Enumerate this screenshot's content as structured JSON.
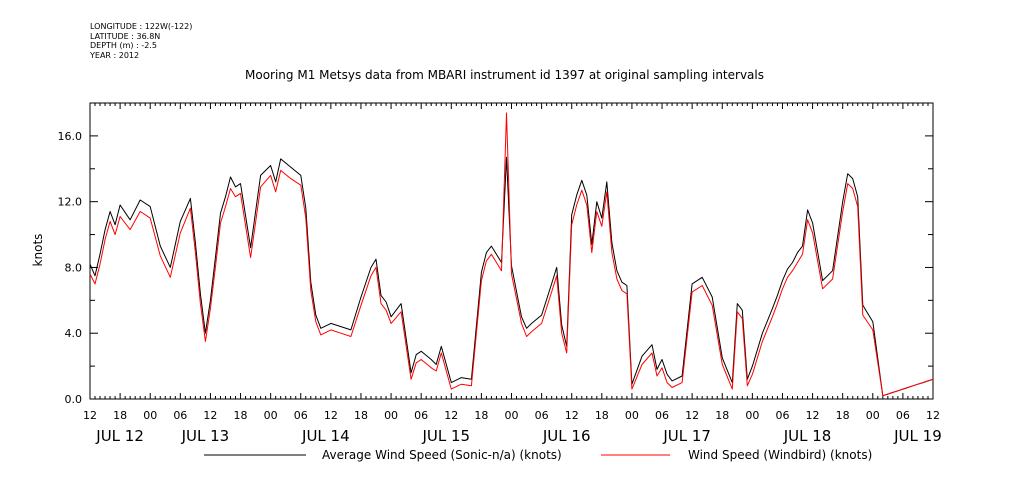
{
  "meta_lines": [
    "LONGITUDE : 122W(-122)",
    "LATITUDE : 36.8N",
    "DEPTH (m) : -2.5",
    "YEAR : 2012"
  ],
  "title": "Mooring M1 Metsys data from MBARI instrument id 1397 at original sampling intervals",
  "chart_data": {
    "type": "line",
    "title": "Mooring M1 Metsys data from MBARI instrument id 1397 at original sampling intervals",
    "xlabel": "",
    "ylabel": "knots",
    "ylim": [
      0.0,
      18.0
    ],
    "xlim_hours": [
      0,
      168
    ],
    "x_unit": "hours since JUL 12 12:00, 2012",
    "y_ticks": [
      "0.0",
      "4.0",
      "8.0",
      "12.0",
      "16.0"
    ],
    "hour_ticks": [
      {
        "h": 0,
        "label": "12"
      },
      {
        "h": 6,
        "label": "18"
      },
      {
        "h": 12,
        "label": "00"
      },
      {
        "h": 18,
        "label": "06"
      },
      {
        "h": 24,
        "label": "12"
      },
      {
        "h": 30,
        "label": "18"
      },
      {
        "h": 36,
        "label": "00"
      },
      {
        "h": 42,
        "label": "06"
      },
      {
        "h": 48,
        "label": "12"
      },
      {
        "h": 54,
        "label": "18"
      },
      {
        "h": 60,
        "label": "00"
      },
      {
        "h": 66,
        "label": "06"
      },
      {
        "h": 72,
        "label": "12"
      },
      {
        "h": 78,
        "label": "18"
      },
      {
        "h": 84,
        "label": "00"
      },
      {
        "h": 90,
        "label": "06"
      },
      {
        "h": 96,
        "label": "12"
      },
      {
        "h": 102,
        "label": "18"
      },
      {
        "h": 108,
        "label": "00"
      },
      {
        "h": 114,
        "label": "06"
      },
      {
        "h": 120,
        "label": "12"
      },
      {
        "h": 126,
        "label": "18"
      },
      {
        "h": 132,
        "label": "00"
      },
      {
        "h": 138,
        "label": "06"
      },
      {
        "h": 144,
        "label": "12"
      },
      {
        "h": 150,
        "label": "18"
      },
      {
        "h": 156,
        "label": "00"
      },
      {
        "h": 162,
        "label": "06"
      },
      {
        "h": 168,
        "label": "12"
      }
    ],
    "day_labels": [
      {
        "h": 6,
        "label": "JUL 12"
      },
      {
        "h": 23,
        "label": "JUL 13"
      },
      {
        "h": 47,
        "label": "JUL 14"
      },
      {
        "h": 71,
        "label": "JUL 15"
      },
      {
        "h": 95,
        "label": "JUL 16"
      },
      {
        "h": 119,
        "label": "JUL 17"
      },
      {
        "h": 143,
        "label": "JUL 18"
      },
      {
        "h": 165,
        "label": "JUL 19"
      }
    ],
    "series": [
      {
        "name": "Average Wind Speed (Sonic-n/a) (knots)",
        "color": "#000000",
        "x": [
          0,
          1,
          2,
          3,
          4,
          5,
          6,
          8,
          10,
          12,
          14,
          16,
          18,
          20,
          21,
          22,
          23,
          24,
          25,
          26,
          27,
          28,
          29,
          30,
          32,
          34,
          36,
          37,
          38,
          40,
          42,
          43,
          44,
          45,
          46,
          48,
          50,
          52,
          54,
          56,
          57,
          58,
          59,
          60,
          62,
          64,
          65,
          66,
          68,
          69,
          70,
          72,
          74,
          76,
          78,
          79,
          80,
          82,
          83,
          84,
          86,
          87,
          88,
          90,
          92,
          93,
          94,
          95,
          96,
          97,
          98,
          99,
          100,
          101,
          102,
          103,
          104,
          105,
          106,
          107,
          108,
          110,
          112,
          113,
          114,
          115,
          116,
          118,
          120,
          122,
          124,
          126,
          128,
          129,
          130,
          131,
          132,
          134,
          136,
          137,
          138,
          139,
          140,
          141,
          142,
          143,
          144,
          146,
          148,
          150,
          151,
          152,
          153,
          154,
          156,
          158,
          159,
          160,
          161,
          162,
          163,
          164,
          165,
          166,
          167,
          168
        ],
        "y": [
          8.2,
          7.5,
          8.8,
          10.3,
          11.4,
          10.6,
          11.8,
          10.9,
          12.1,
          11.7,
          9.3,
          8.0,
          10.8,
          12.2,
          9.5,
          6.4,
          4.0,
          6.0,
          8.6,
          11.3,
          12.3,
          13.5,
          12.9,
          13.1,
          9.2,
          13.6,
          14.2,
          13.2,
          14.6,
          14.1,
          13.6,
          11.6,
          7.1,
          5.1,
          4.3,
          4.6,
          4.4,
          4.2,
          6.2,
          8.0,
          8.5,
          6.3,
          5.9,
          5.0,
          5.8,
          1.6,
          2.7,
          2.9,
          2.4,
          2.1,
          3.2,
          1.0,
          1.3,
          1.2,
          7.7,
          8.9,
          9.3,
          8.3,
          14.7,
          8.1,
          5.0,
          4.3,
          4.6,
          5.1,
          7.0,
          8.0,
          4.5,
          3.2,
          11.2,
          12.4,
          13.3,
          12.4,
          9.4,
          12.0,
          11.0,
          13.2,
          9.5,
          7.8,
          7.1,
          6.9,
          0.9,
          2.6,
          3.3,
          1.8,
          2.4,
          1.5,
          1.1,
          1.4,
          7.0,
          7.4,
          6.2,
          2.5,
          1.0,
          5.8,
          5.4,
          1.2,
          2.0,
          4.0,
          5.5,
          6.3,
          7.2,
          7.9,
          8.3,
          8.9,
          9.3,
          11.5,
          10.7,
          7.2,
          7.8,
          12.0,
          13.7,
          13.4,
          12.3,
          5.7,
          4.7,
          0.2,
          0.3,
          0.4,
          0.5,
          0.6,
          0.7,
          0.8,
          0.9,
          1.0,
          1.1,
          1.2
        ]
      },
      {
        "name": "Wind Speed (Windbird) (knots)",
        "color": "#ff0000",
        "x": [
          0,
          1,
          2,
          3,
          4,
          5,
          6,
          8,
          10,
          12,
          14,
          16,
          18,
          20,
          21,
          22,
          23,
          24,
          25,
          26,
          27,
          28,
          29,
          30,
          32,
          34,
          36,
          37,
          38,
          40,
          42,
          43,
          44,
          45,
          46,
          48,
          50,
          52,
          54,
          56,
          57,
          58,
          59,
          60,
          62,
          64,
          65,
          66,
          68,
          69,
          70,
          72,
          74,
          76,
          78,
          79,
          80,
          82,
          83,
          84,
          86,
          87,
          88,
          90,
          92,
          93,
          94,
          95,
          96,
          97,
          98,
          99,
          100,
          101,
          102,
          103,
          104,
          105,
          106,
          107,
          108,
          110,
          112,
          113,
          114,
          115,
          116,
          118,
          120,
          122,
          124,
          126,
          128,
          129,
          130,
          131,
          132,
          134,
          136,
          137,
          138,
          139,
          140,
          141,
          142,
          143,
          144,
          146,
          148,
          150,
          151,
          152,
          153,
          154,
          156,
          158,
          159,
          160,
          161,
          162,
          163,
          164,
          165,
          166,
          167,
          168
        ],
        "y": [
          7.6,
          7.0,
          8.2,
          9.7,
          10.8,
          10.0,
          11.1,
          10.3,
          11.4,
          11.0,
          8.7,
          7.4,
          10.1,
          11.6,
          8.9,
          5.8,
          3.5,
          5.5,
          8.0,
          10.7,
          11.7,
          12.8,
          12.3,
          12.5,
          8.6,
          12.9,
          13.6,
          12.6,
          13.9,
          13.4,
          13.0,
          11.0,
          6.6,
          4.7,
          3.9,
          4.2,
          4.0,
          3.8,
          5.7,
          7.5,
          8.0,
          5.8,
          5.4,
          4.6,
          5.3,
          1.2,
          2.2,
          2.4,
          1.9,
          1.7,
          2.8,
          0.6,
          0.9,
          0.8,
          7.2,
          8.4,
          8.8,
          7.8,
          17.4,
          7.6,
          4.6,
          3.8,
          4.1,
          4.6,
          6.5,
          7.5,
          4.0,
          2.8,
          10.6,
          11.8,
          12.7,
          11.8,
          8.9,
          11.4,
          10.5,
          12.6,
          8.9,
          7.3,
          6.6,
          6.4,
          0.6,
          2.1,
          2.8,
          1.4,
          1.9,
          1.0,
          0.7,
          1.0,
          6.5,
          6.9,
          5.7,
          2.1,
          0.6,
          5.3,
          4.9,
          0.8,
          1.5,
          3.5,
          5.0,
          5.8,
          6.7,
          7.4,
          7.8,
          8.3,
          8.8,
          10.9,
          10.1,
          6.7,
          7.3,
          11.4,
          13.1,
          12.8,
          11.7,
          5.1,
          4.2,
          0.2,
          0.3,
          0.4,
          0.5,
          0.6,
          0.7,
          0.8,
          0.9,
          1.0,
          1.1,
          1.2
        ]
      }
    ]
  }
}
